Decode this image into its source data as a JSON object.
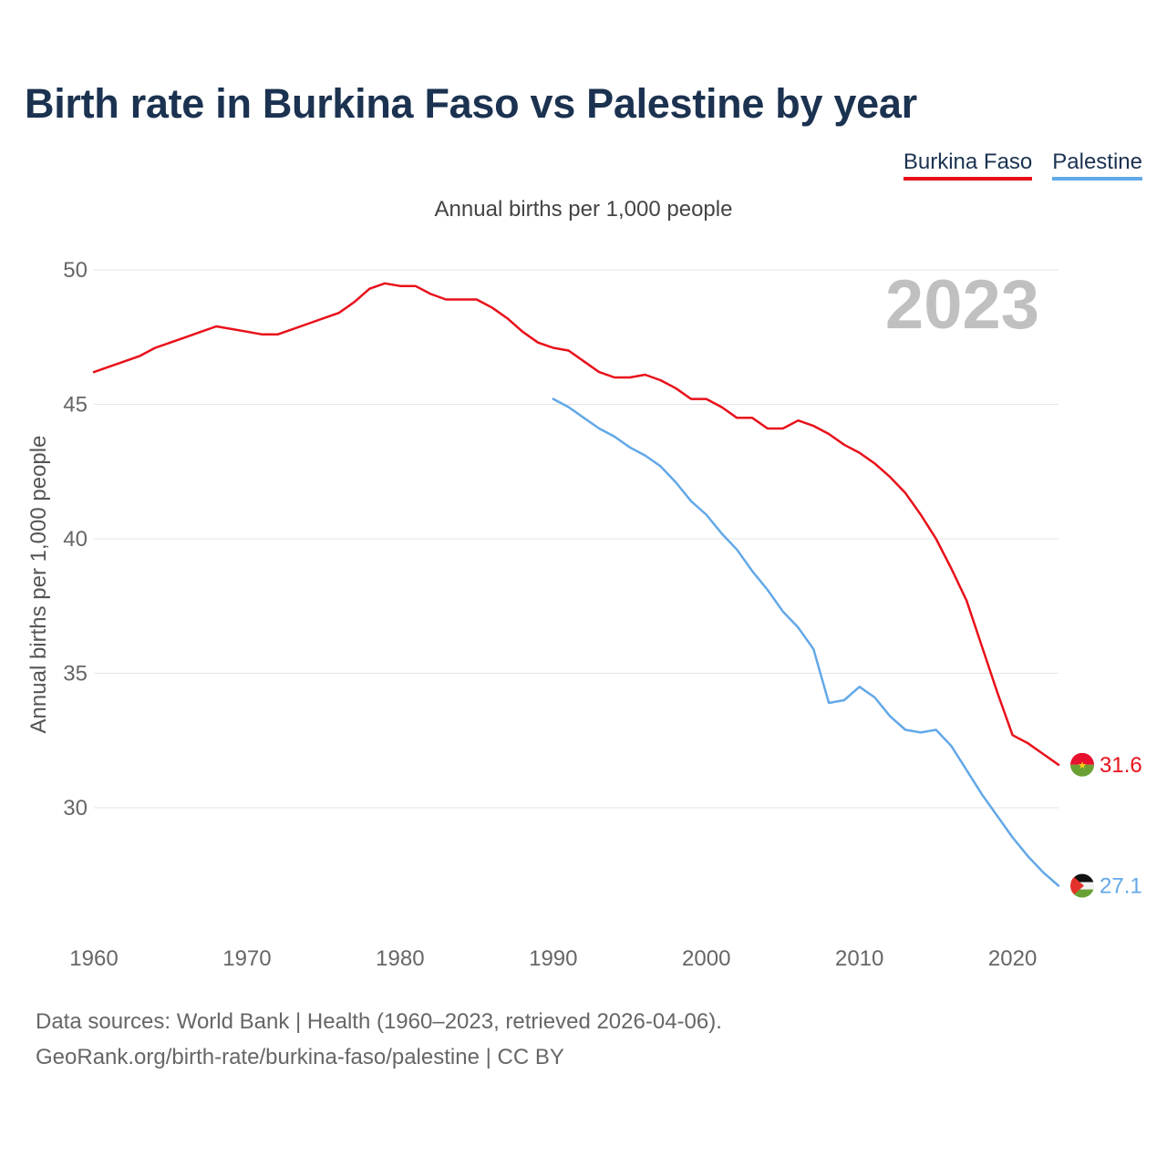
{
  "title": "Birth rate in Burkina Faso vs Palestine by year",
  "subtitle": "Annual births per 1,000 people",
  "footer": {
    "line1": "Data sources: World Bank | Health (1960–2023, retrieved 2026-04-06).",
    "line2": "GeoRank.org/birth-rate/burkina-faso/palestine | CC BY"
  },
  "chart_data": {
    "type": "line",
    "title": "Birth rate in Burkina Faso vs Palestine by year",
    "ylabel": "Annual births per 1,000 people",
    "xlabel": "",
    "year_watermark": "2023",
    "xlim": [
      1960,
      2023
    ],
    "ylim": [
      27,
      50
    ],
    "xticks": [
      1960,
      1970,
      1980,
      1990,
      2000,
      2010,
      2020
    ],
    "yticks": [
      30,
      35,
      40,
      45,
      50
    ],
    "grid": true,
    "legend": "top-right",
    "series": [
      {
        "name": "Burkina Faso",
        "color": "#e8101a",
        "end_label": "31.6",
        "flag_icon": "burkina-faso-flag-icon",
        "x": [
          1960,
          1961,
          1962,
          1963,
          1964,
          1965,
          1966,
          1967,
          1968,
          1969,
          1970,
          1971,
          1972,
          1973,
          1974,
          1975,
          1976,
          1977,
          1978,
          1979,
          1980,
          1981,
          1982,
          1983,
          1984,
          1985,
          1986,
          1987,
          1988,
          1989,
          1990,
          1991,
          1992,
          1993,
          1994,
          1995,
          1996,
          1997,
          1998,
          1999,
          2000,
          2001,
          2002,
          2003,
          2004,
          2005,
          2006,
          2007,
          2008,
          2009,
          2010,
          2011,
          2012,
          2013,
          2014,
          2015,
          2016,
          2017,
          2018,
          2019,
          2020,
          2021,
          2022,
          2023
        ],
        "values": [
          46.2,
          46.4,
          46.6,
          46.8,
          47.1,
          47.3,
          47.5,
          47.7,
          47.9,
          47.8,
          47.7,
          47.6,
          47.6,
          47.8,
          48.0,
          48.2,
          48.4,
          48.8,
          49.3,
          49.5,
          49.4,
          49.4,
          49.1,
          48.9,
          48.9,
          48.9,
          48.6,
          48.2,
          47.7,
          47.3,
          47.1,
          47.0,
          46.6,
          46.2,
          46.0,
          46.0,
          46.1,
          45.9,
          45.6,
          45.2,
          45.2,
          44.9,
          44.5,
          44.5,
          44.1,
          44.1,
          44.4,
          44.2,
          43.9,
          43.5,
          43.2,
          42.8,
          42.3,
          41.7,
          40.9,
          40.0,
          38.9,
          37.7,
          36.0,
          34.3,
          32.7,
          32.4,
          32.0,
          31.6
        ]
      },
      {
        "name": "Palestine",
        "color": "#62a8e8",
        "end_label": "27.1",
        "flag_icon": "palestine-flag-icon",
        "x": [
          1990,
          1991,
          1992,
          1993,
          1994,
          1995,
          1996,
          1997,
          1998,
          1999,
          2000,
          2001,
          2002,
          2003,
          2004,
          2005,
          2006,
          2007,
          2008,
          2009,
          2010,
          2011,
          2012,
          2013,
          2014,
          2015,
          2016,
          2017,
          2018,
          2019,
          2020,
          2021,
          2022,
          2023
        ],
        "values": [
          45.2,
          44.9,
          44.5,
          44.1,
          43.8,
          43.4,
          43.1,
          42.7,
          42.1,
          41.4,
          40.9,
          40.2,
          39.6,
          38.8,
          38.1,
          37.3,
          36.7,
          35.9,
          33.9,
          34.0,
          34.5,
          34.1,
          33.4,
          32.9,
          32.8,
          32.9,
          32.3,
          31.4,
          30.5,
          29.7,
          28.9,
          28.2,
          27.6,
          27.1
        ]
      }
    ]
  }
}
